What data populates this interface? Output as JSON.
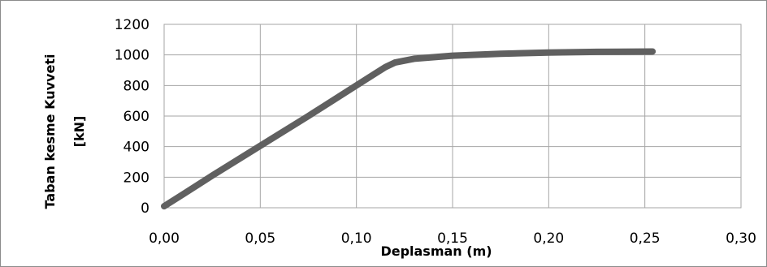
{
  "chart_data": {
    "type": "line",
    "title": "",
    "xlabel": "Deplasman (m)",
    "ylabel_line1": "Taban kesme Kuvveti",
    "ylabel_line2": "[kN]",
    "xlim": [
      0,
      0.3
    ],
    "ylim": [
      0,
      1200
    ],
    "xticks": [
      0,
      0.05,
      0.1,
      0.15,
      0.2,
      0.25,
      0.3
    ],
    "xtick_labels": [
      "0,00",
      "0,05",
      "0,10",
      "0,15",
      "0,20",
      "0,25",
      "0,30"
    ],
    "yticks": [
      0,
      200,
      400,
      600,
      800,
      1000,
      1200
    ],
    "ytick_labels": [
      "0",
      "200",
      "400",
      "600",
      "800",
      "1000",
      "1200"
    ],
    "grid": true,
    "legend": "none",
    "series": [
      {
        "color": "#606060",
        "x": [
          0.0,
          0.01,
          0.025,
          0.05,
          0.075,
          0.1,
          0.11,
          0.115,
          0.12,
          0.13,
          0.15,
          0.175,
          0.2,
          0.225,
          0.254
        ],
        "y": [
          10,
          90,
          210,
          405,
          600,
          800,
          880,
          920,
          950,
          975,
          995,
          1008,
          1015,
          1020,
          1022
        ]
      }
    ]
  }
}
